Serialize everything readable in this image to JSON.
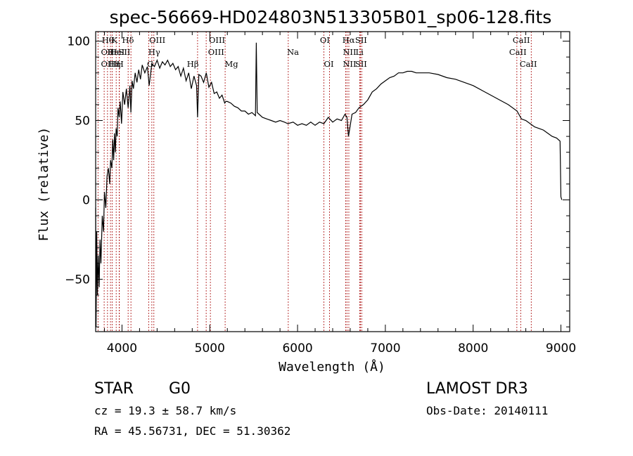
{
  "chart_data": {
    "type": "line",
    "title": "spec-56669-HD024803N513305B01_sp06-128.fits",
    "xlabel": "Wavelength (Å)",
    "ylabel": "Flux (relative)",
    "xlim": [
      3700,
      9100
    ],
    "ylim": [
      -83,
      106
    ],
    "xticks": [
      4000,
      5000,
      6000,
      7000,
      8000,
      9000
    ],
    "yticks": [
      -50,
      0,
      50,
      100
    ],
    "series": [
      {
        "name": "spectrum",
        "x": [
          3700,
          3705,
          3712,
          3720,
          3730,
          3740,
          3750,
          3760,
          3775,
          3790,
          3800,
          3815,
          3830,
          3845,
          3860,
          3870,
          3885,
          3895,
          3905,
          3915,
          3925,
          3933,
          3945,
          3955,
          3968,
          3980,
          3995,
          4010,
          4030,
          4050,
          4070,
          4090,
          4101,
          4115,
          4130,
          4150,
          4170,
          4190,
          4210,
          4230,
          4260,
          4290,
          4310,
          4340,
          4370,
          4400,
          4430,
          4460,
          4490,
          4520,
          4550,
          4580,
          4610,
          4640,
          4670,
          4700,
          4730,
          4760,
          4790,
          4820,
          4850,
          4861,
          4875,
          4900,
          4930,
          4960,
          4990,
          5020,
          5050,
          5080,
          5110,
          5140,
          5170,
          5183,
          5200,
          5240,
          5280,
          5320,
          5360,
          5400,
          5440,
          5480,
          5520,
          5530,
          5540,
          5560,
          5600,
          5650,
          5700,
          5750,
          5800,
          5850,
          5890,
          5950,
          6000,
          6050,
          6100,
          6150,
          6200,
          6250,
          6300,
          6350,
          6400,
          6450,
          6500,
          6540,
          6563,
          6580,
          6620,
          6660,
          6700,
          6750,
          6800,
          6850,
          6900,
          6950,
          7000,
          7050,
          7100,
          7150,
          7200,
          7250,
          7300,
          7350,
          7400,
          7500,
          7600,
          7700,
          7800,
          7900,
          8000,
          8100,
          8200,
          8300,
          8400,
          8500,
          8550,
          8600,
          8650,
          8700,
          8750,
          8800,
          8850,
          8900,
          8950,
          8990,
          9000,
          9010
        ],
        "values": [
          -5,
          -80,
          -20,
          -60,
          -35,
          -55,
          -25,
          -40,
          -10,
          -20,
          5,
          -5,
          15,
          20,
          10,
          25,
          20,
          38,
          25,
          42,
          30,
          45,
          40,
          58,
          52,
          62,
          48,
          68,
          60,
          70,
          58,
          72,
          55,
          75,
          70,
          80,
          74,
          82,
          76,
          85,
          80,
          84,
          72,
          86,
          84,
          88,
          83,
          87,
          85,
          88,
          84,
          86,
          82,
          84,
          78,
          83,
          75,
          80,
          70,
          78,
          72,
          52,
          79,
          78,
          74,
          80,
          71,
          74,
          67,
          68,
          64,
          66,
          61,
          62,
          62,
          61,
          59,
          58,
          56,
          56,
          54,
          55,
          53,
          99,
          55,
          54,
          52,
          51,
          50,
          49,
          50,
          49,
          48,
          49,
          47,
          48,
          47,
          49,
          47,
          49,
          48,
          52,
          49,
          51,
          50,
          54,
          52,
          40,
          54,
          55,
          58,
          60,
          63,
          68,
          70,
          73,
          75,
          77,
          78,
          80,
          80,
          81,
          81,
          80,
          80,
          80,
          79,
          77,
          76,
          74,
          72,
          69,
          66,
          63,
          60,
          56,
          51,
          50,
          48,
          46,
          45,
          44,
          42,
          40,
          39,
          37,
          2,
          0
        ]
      }
    ],
    "lines": [
      {
        "name": "Hθ",
        "wl": 3797
      },
      {
        "name": "OII",
        "wl": 3727
      },
      {
        "name": "OIII",
        "wl": 3869
      },
      {
        "name": "HeI",
        "wl": 3889
      },
      {
        "name": "K",
        "wl": 3934
      },
      {
        "name": "Hε",
        "wl": 3970
      },
      {
        "name": "SII",
        "wl": 4070
      },
      {
        "name": "Hδ",
        "wl": 4102
      },
      {
        "name": "H",
        "wl": 3968
      },
      {
        "name": "Hη",
        "wl": 3835
      },
      {
        "name": "OIII",
        "wl": 4363
      },
      {
        "name": "Hγ",
        "wl": 4340
      },
      {
        "name": "G",
        "wl": 4304
      },
      {
        "name": "OIII",
        "wl": 4959
      },
      {
        "name": "OIII",
        "wl": 5007
      },
      {
        "name": "Hβ",
        "wl": 4861
      },
      {
        "name": "Mg",
        "wl": 5175
      },
      {
        "name": "Na",
        "wl": 5894
      },
      {
        "name": "OI",
        "wl": 6300
      },
      {
        "name": "OI",
        "wl": 6364
      },
      {
        "name": "Hα",
        "wl": 6563
      },
      {
        "name": "NII",
        "wl": 6548
      },
      {
        "name": "NII",
        "wl": 6584
      },
      {
        "name": "SII",
        "wl": 6717
      },
      {
        "name": "SII",
        "wl": 6731
      },
      {
        "name": "Li",
        "wl": 6708
      },
      {
        "name": "CaII",
        "wl": 8498
      },
      {
        "name": "CaII",
        "wl": 8542
      },
      {
        "name": "CaII",
        "wl": 8662
      }
    ]
  },
  "line_labels": [
    {
      "text": "Hθ",
      "row": 1,
      "wl": 3770
    },
    {
      "text": "OII",
      "row": 2,
      "wl": 3760
    },
    {
      "text": "OIII",
      "row": 3,
      "wl": 3760
    },
    {
      "text": "Hε",
      "row": 2,
      "wl": 3832
    },
    {
      "text": "HeI",
      "row": 2,
      "wl": 3860
    },
    {
      "text": "K",
      "row": 1,
      "wl": 3880
    },
    {
      "text": "Hη",
      "row": 3,
      "wl": 3848
    },
    {
      "text": "SII",
      "row": 2,
      "wl": 3960
    },
    {
      "text": "H",
      "row": 3,
      "wl": 3938
    },
    {
      "text": "Hδ",
      "row": 1,
      "wl": 4000
    },
    {
      "text": "OIII",
      "row": 1,
      "wl": 4310
    },
    {
      "text": "Hγ",
      "row": 2,
      "wl": 4300
    },
    {
      "text": "G",
      "row": 3,
      "wl": 4285
    },
    {
      "text": "OIII",
      "row": 1,
      "wl": 4990
    },
    {
      "text": "OIII",
      "row": 2,
      "wl": 4980
    },
    {
      "text": "Hβ",
      "row": 3,
      "wl": 4740
    },
    {
      "text": "Mg",
      "row": 3,
      "wl": 5170
    },
    {
      "text": "Na",
      "row": 2,
      "wl": 5880
    },
    {
      "text": "OI",
      "row": 1,
      "wl": 6255
    },
    {
      "text": "OI",
      "row": 3,
      "wl": 6300
    },
    {
      "text": "Hα",
      "row": 1,
      "wl": 6510
    },
    {
      "text": "NII",
      "row": 2,
      "wl": 6515
    },
    {
      "text": "NII",
      "row": 3,
      "wl": 6515
    },
    {
      "text": "SII",
      "row": 1,
      "wl": 6655
    },
    {
      "text": "Li",
      "row": 2,
      "wl": 6660
    },
    {
      "text": "SII",
      "row": 3,
      "wl": 6655
    },
    {
      "text": "CaII",
      "row": 1,
      "wl": 8450
    },
    {
      "text": "CaII",
      "row": 2,
      "wl": 8410
    },
    {
      "text": "CaII",
      "row": 3,
      "wl": 8530
    }
  ],
  "info": {
    "object_class": "STAR",
    "subclass": "G0",
    "survey": "LAMOST DR3",
    "cz": "cz = 19.3 ± 58.7 km/s",
    "obs_date": "Obs-Date: 20140111",
    "coords": "RA =  45.56731, DEC =  51.30362"
  },
  "colors": {
    "line_marker": "#b22222",
    "spectrum": "#000000",
    "axis": "#000000"
  }
}
